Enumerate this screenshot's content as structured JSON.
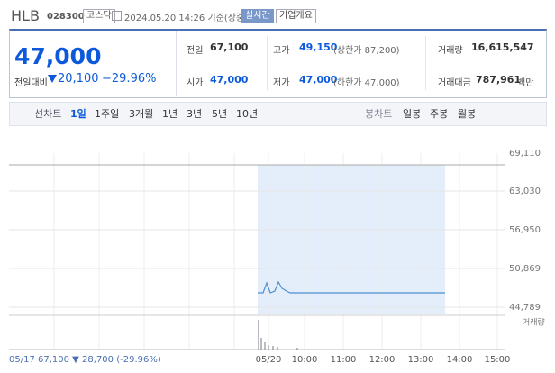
{
  "header": {
    "name": "HLB",
    "code": "028300",
    "market": "코스닥",
    "timestamp": "2024.05.20 14:26 기준(장중)",
    "realtime": "실시간",
    "company": "기업개요"
  },
  "quote": {
    "price": "47,000",
    "change_label": "전일대비",
    "change": "20,100",
    "change_rate": "−29.96%"
  },
  "stats": [
    {
      "label": "전일",
      "value": "67,100"
    },
    {
      "label": "고가",
      "value": "49,150",
      "note": "(상한가 87,200)"
    },
    {
      "label": "거래량",
      "value": "16,615,547"
    },
    {
      "label": "시가",
      "value": "47,000"
    },
    {
      "label": "저가",
      "value": "47,000",
      "note": "(하한가 47,000)"
    },
    {
      "label": "거래대금",
      "value": "787,961",
      "unit": "백만"
    }
  ],
  "tabs": {
    "line_label": "선차트",
    "line": [
      "1일",
      "1주일",
      "3개월",
      "1년",
      "3년",
      "5년",
      "10년"
    ],
    "candle_label": "봉차트",
    "candle": [
      "일봉",
      "주봉",
      "월봉"
    ]
  },
  "chart": {
    "yticks": [
      "69,110",
      "63,030",
      "56,950",
      "50,869",
      "44,789"
    ],
    "xlabels": [
      "05/20",
      "10:00",
      "11:00",
      "12:00",
      "13:00",
      "14:00",
      "15:00"
    ],
    "info": "05/17 67,100 ▼ 28,700 (-29.96%)",
    "volume_label": "거래량"
  }
}
